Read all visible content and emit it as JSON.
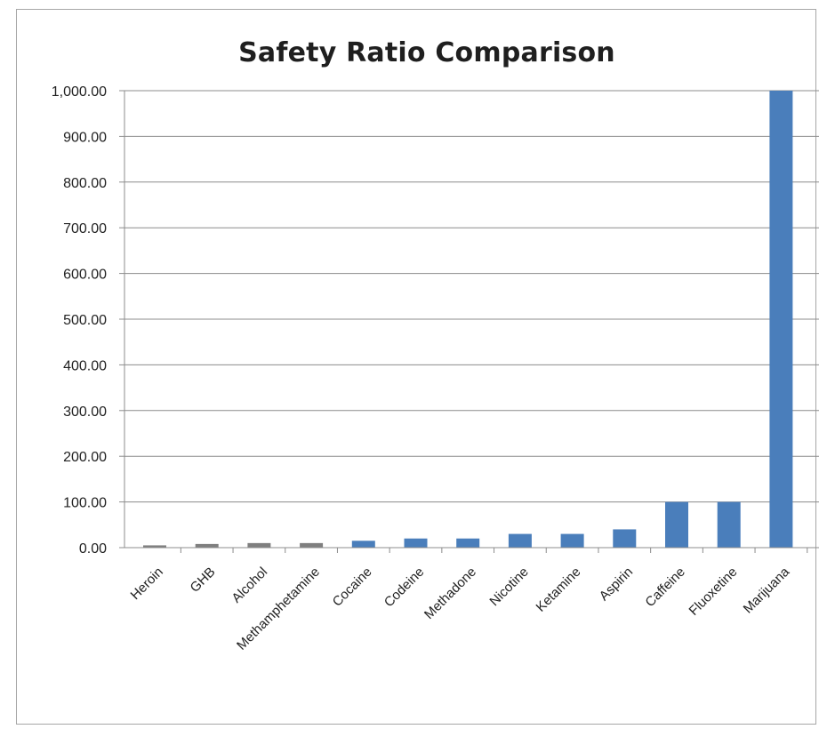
{
  "chart_data": {
    "type": "bar",
    "title": "Safety Ratio Comparison",
    "xlabel": "",
    "ylabel": "",
    "categories": [
      "Heroin",
      "GHB",
      "Alcohol",
      "Methamphetamine",
      "Cocaine",
      "Codeine",
      "Methadone",
      "Nicotine",
      "Ketamine",
      "Aspirin",
      "Caffeine",
      "Fluoxetine",
      "Marijuana"
    ],
    "values": [
      5,
      8,
      10,
      10,
      15,
      20,
      20,
      30,
      30,
      40,
      100,
      100,
      1000
    ],
    "ylim": [
      0,
      1000
    ],
    "yticks": [
      "0.00",
      "100.00",
      "200.00",
      "300.00",
      "400.00",
      "500.00",
      "600.00",
      "700.00",
      "800.00",
      "900.00",
      "1,000.00"
    ],
    "grid": true,
    "legend": "none",
    "colors": {
      "bar": "#4a7ebb",
      "bar_faint": "#7f7f7f",
      "grid": "#8c8c8c",
      "axis": "#8c8c8c"
    }
  }
}
